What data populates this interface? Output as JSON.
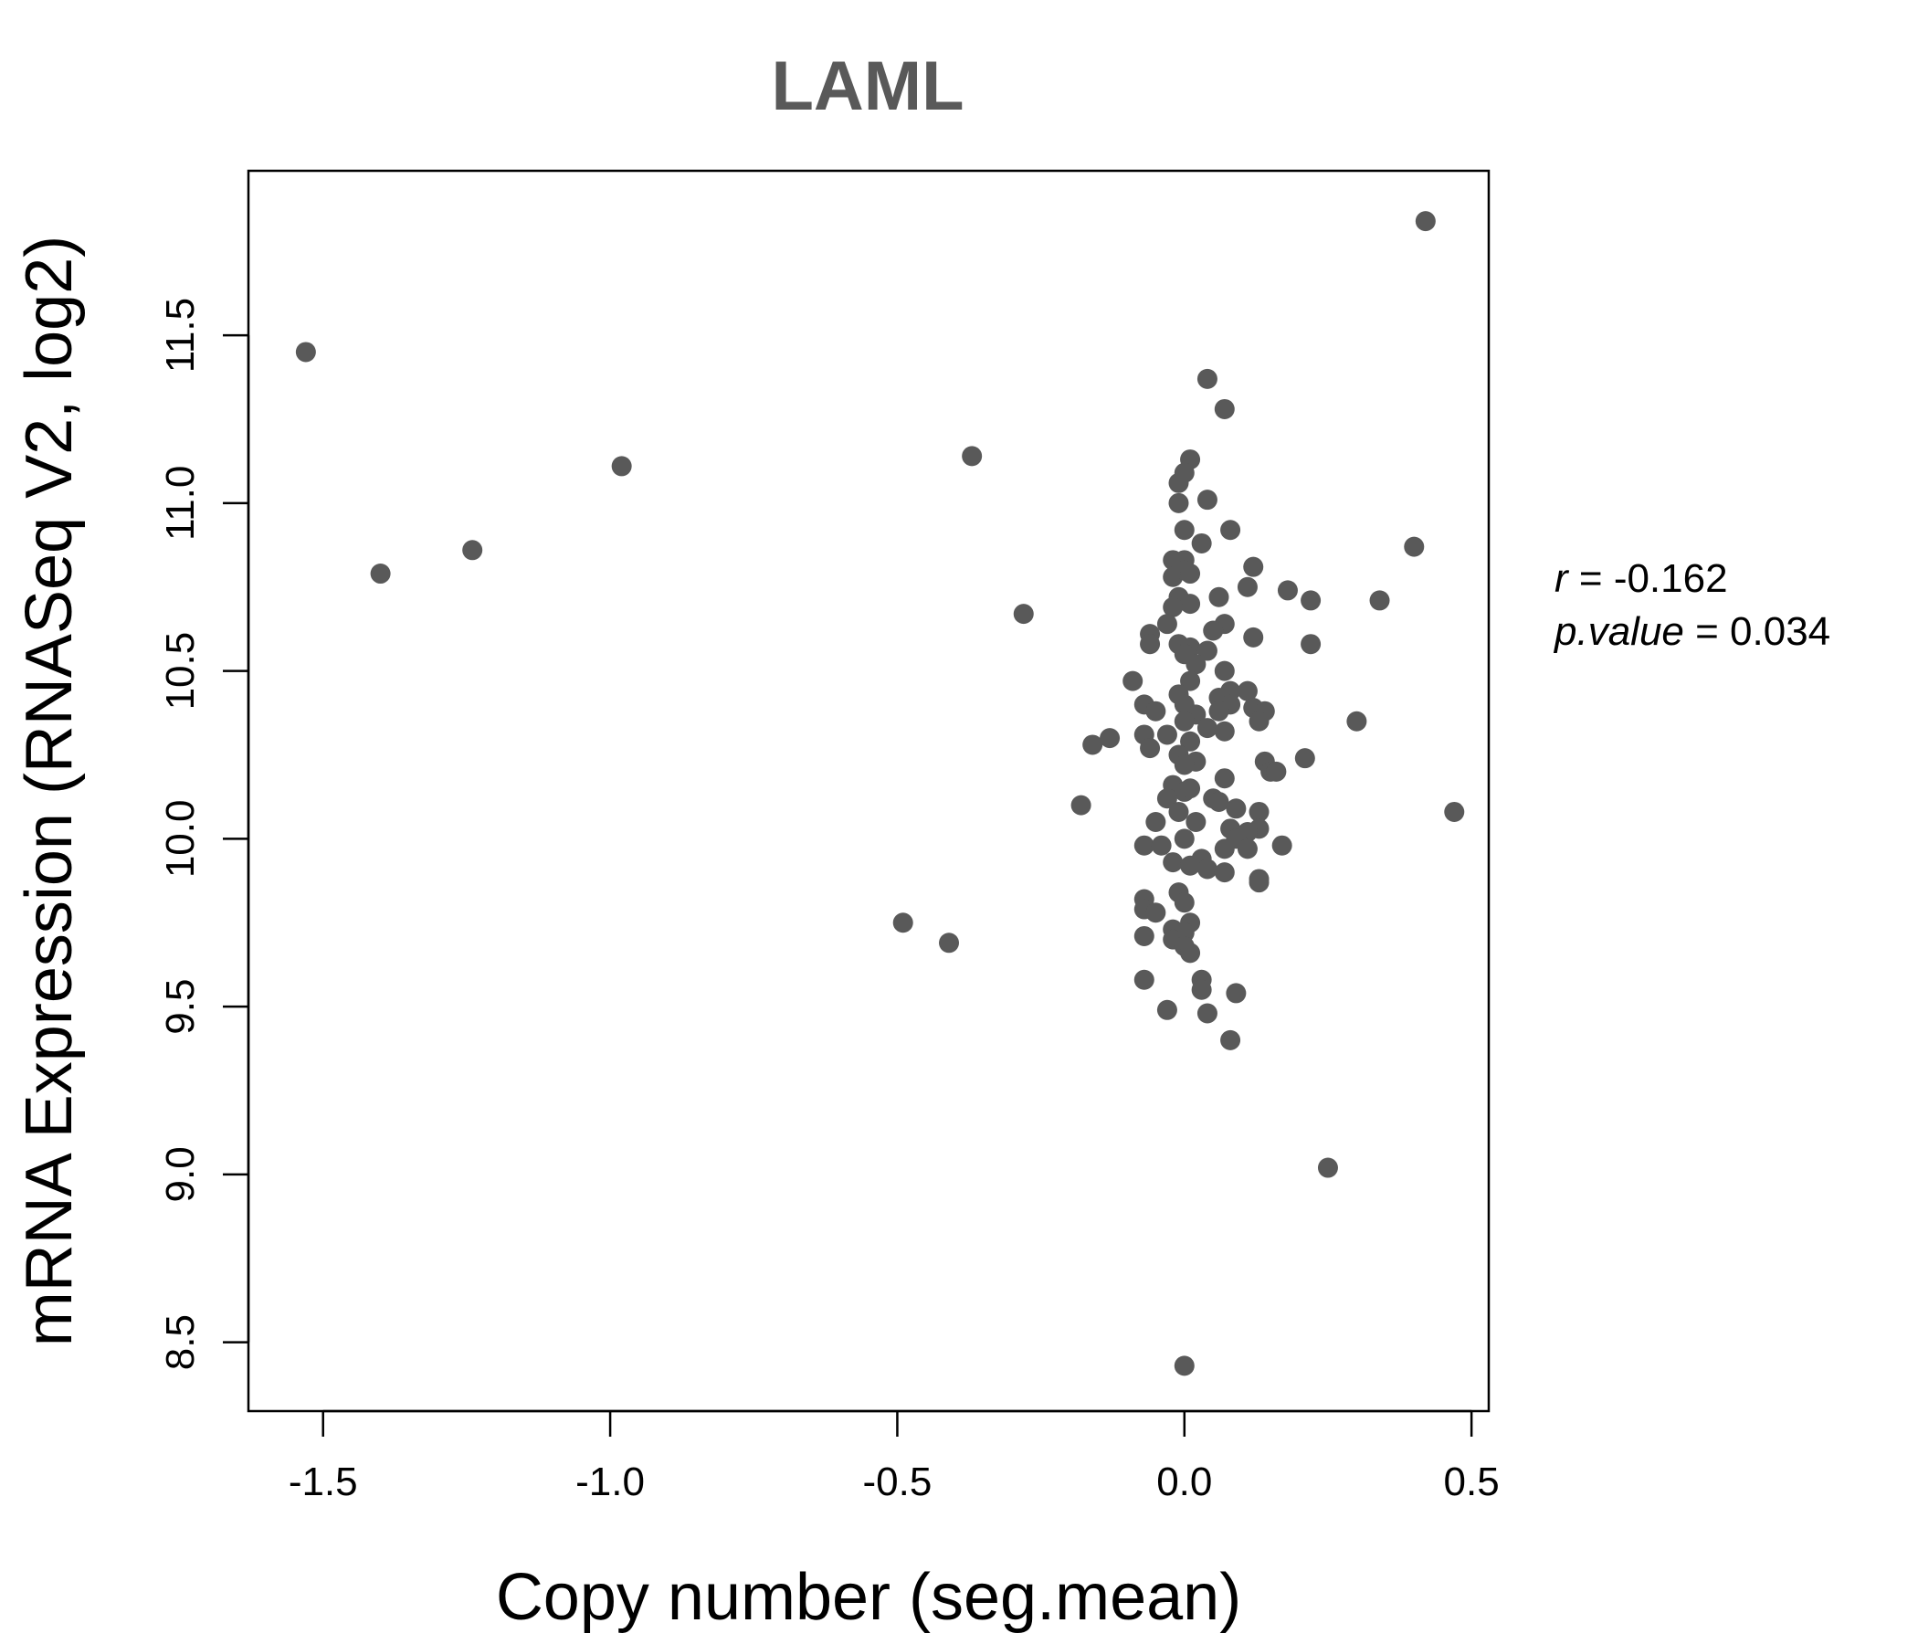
{
  "chart_data": {
    "type": "scatter",
    "title": "LAML",
    "xlabel": "Copy number (seg.mean)",
    "ylabel": "mRNA Expression (RNASeq V2, log2)",
    "xlim": [
      -1.63,
      0.53
    ],
    "ylim": [
      8.295,
      11.99
    ],
    "xticks": [
      -1.5,
      -1.0,
      -0.5,
      0.0,
      0.5
    ],
    "xtick_labels": [
      "-1.5",
      "-1.0",
      "-0.5",
      "0.0",
      "0.5"
    ],
    "yticks": [
      8.5,
      9.0,
      9.5,
      10.0,
      10.5,
      11.0,
      11.5
    ],
    "ytick_labels": [
      "8.5",
      "9.0",
      "9.5",
      "10.0",
      "10.5",
      "11.0",
      "11.5"
    ],
    "grid": false,
    "point_color": "#595959",
    "stats": {
      "r_label": "r",
      "r_value": "-0.162",
      "p_label": "p.value",
      "p_value": "0.034"
    },
    "points": [
      [
        -1.53,
        11.45
      ],
      [
        -1.4,
        10.79
      ],
      [
        -1.24,
        10.86
      ],
      [
        -0.98,
        11.11
      ],
      [
        -0.37,
        11.14
      ],
      [
        -0.28,
        10.67
      ],
      [
        -0.49,
        9.75
      ],
      [
        -0.41,
        9.69
      ],
      [
        0.04,
        11.37
      ],
      [
        0.07,
        11.28
      ],
      [
        0.42,
        11.84
      ],
      [
        0.4,
        10.87
      ],
      [
        0.34,
        10.71
      ],
      [
        0.3,
        10.35
      ],
      [
        0.47,
        10.08
      ],
      [
        0.25,
        9.02
      ],
      [
        0.0,
        8.43
      ],
      [
        0.22,
        10.71
      ],
      [
        0.22,
        10.58
      ],
      [
        0.18,
        10.74
      ],
      [
        0.21,
        10.24
      ],
      [
        0.17,
        9.98
      ],
      [
        0.01,
        11.13
      ],
      [
        0.0,
        11.09
      ],
      [
        -0.01,
        11.06
      ],
      [
        -0.01,
        11.0
      ],
      [
        0.04,
        11.01
      ],
      [
        0.0,
        10.92
      ],
      [
        0.08,
        10.92
      ],
      [
        0.03,
        10.88
      ],
      [
        -0.02,
        10.83
      ],
      [
        0.0,
        10.83
      ],
      [
        -0.02,
        10.78
      ],
      [
        0.0,
        10.8
      ],
      [
        0.01,
        10.79
      ],
      [
        0.12,
        10.81
      ],
      [
        0.11,
        10.75
      ],
      [
        0.06,
        10.72
      ],
      [
        -0.01,
        10.72
      ],
      [
        0.01,
        10.7
      ],
      [
        -0.02,
        10.69
      ],
      [
        0.07,
        10.64
      ],
      [
        0.05,
        10.62
      ],
      [
        -0.03,
        10.64
      ],
      [
        -0.06,
        10.61
      ],
      [
        0.12,
        10.6
      ],
      [
        -0.06,
        10.58
      ],
      [
        -0.01,
        10.58
      ],
      [
        0.01,
        10.57
      ],
      [
        0.04,
        10.56
      ],
      [
        0.0,
        10.55
      ],
      [
        0.02,
        10.52
      ],
      [
        0.07,
        10.5
      ],
      [
        -0.09,
        10.47
      ],
      [
        0.01,
        10.47
      ],
      [
        0.11,
        10.44
      ],
      [
        0.08,
        10.44
      ],
      [
        -0.01,
        10.43
      ],
      [
        0.06,
        10.42
      ],
      [
        -0.07,
        10.4
      ],
      [
        0.08,
        10.4
      ],
      [
        0.0,
        10.4
      ],
      [
        -0.05,
        10.38
      ],
      [
        0.12,
        10.39
      ],
      [
        0.14,
        10.38
      ],
      [
        0.06,
        10.38
      ],
      [
        0.02,
        10.37
      ],
      [
        0.13,
        10.35
      ],
      [
        0.04,
        10.33
      ],
      [
        0.0,
        10.35
      ],
      [
        -0.13,
        10.3
      ],
      [
        -0.16,
        10.28
      ],
      [
        -0.07,
        10.31
      ],
      [
        -0.03,
        10.31
      ],
      [
        0.07,
        10.32
      ],
      [
        0.01,
        10.29
      ],
      [
        -0.06,
        10.27
      ],
      [
        -0.01,
        10.25
      ],
      [
        0.14,
        10.23
      ],
      [
        0.02,
        10.23
      ],
      [
        0.0,
        10.22
      ],
      [
        0.15,
        10.2
      ],
      [
        0.16,
        10.2
      ],
      [
        0.07,
        10.18
      ],
      [
        -0.02,
        10.16
      ],
      [
        0.0,
        10.14
      ],
      [
        0.01,
        10.15
      ],
      [
        -0.03,
        10.12
      ],
      [
        0.05,
        10.12
      ],
      [
        0.06,
        10.11
      ],
      [
        -0.18,
        10.1
      ],
      [
        0.09,
        10.09
      ],
      [
        0.13,
        10.08
      ],
      [
        -0.01,
        10.08
      ],
      [
        0.02,
        10.05
      ],
      [
        -0.05,
        10.05
      ],
      [
        0.08,
        10.03
      ],
      [
        0.13,
        10.03
      ],
      [
        0.11,
        10.02
      ],
      [
        0.09,
        10.0
      ],
      [
        0.0,
        10.0
      ],
      [
        -0.07,
        9.98
      ],
      [
        -0.04,
        9.98
      ],
      [
        0.07,
        9.97
      ],
      [
        0.11,
        9.97
      ],
      [
        0.03,
        9.94
      ],
      [
        -0.02,
        9.93
      ],
      [
        0.01,
        9.92
      ],
      [
        0.04,
        9.91
      ],
      [
        0.07,
        9.9
      ],
      [
        0.13,
        9.88
      ],
      [
        0.13,
        9.87
      ],
      [
        -0.01,
        9.84
      ],
      [
        -0.07,
        9.82
      ],
      [
        0.0,
        9.81
      ],
      [
        -0.07,
        9.79
      ],
      [
        -0.05,
        9.78
      ],
      [
        0.01,
        9.75
      ],
      [
        -0.02,
        9.73
      ],
      [
        0.0,
        9.72
      ],
      [
        -0.07,
        9.71
      ],
      [
        -0.02,
        9.7
      ],
      [
        0.0,
        9.68
      ],
      [
        0.01,
        9.66
      ],
      [
        -0.07,
        9.58
      ],
      [
        0.03,
        9.58
      ],
      [
        0.03,
        9.55
      ],
      [
        0.09,
        9.54
      ],
      [
        -0.03,
        9.49
      ],
      [
        0.04,
        9.48
      ],
      [
        0.08,
        9.4
      ]
    ]
  }
}
